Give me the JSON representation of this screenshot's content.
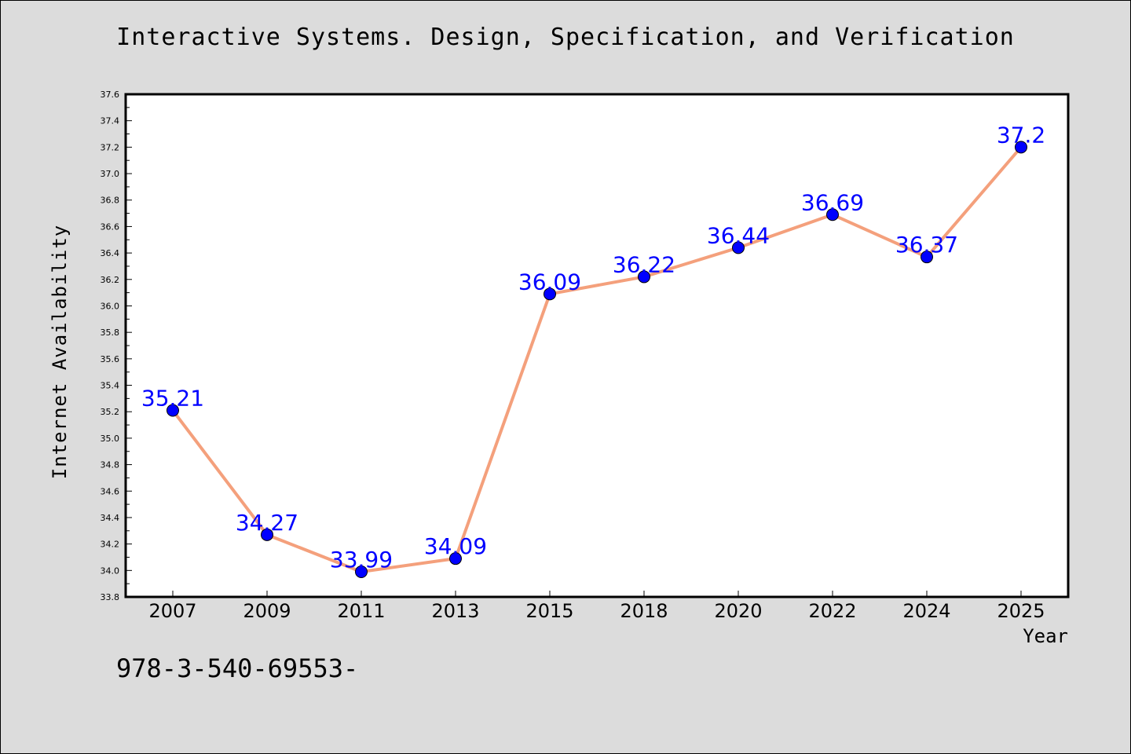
{
  "chart_data": {
    "type": "line",
    "title": "Interactive Systems. Design, Specification, and Verification",
    "xlabel": "Year",
    "ylabel": "Internet Availability",
    "categories": [
      "2007",
      "2009",
      "2011",
      "2013",
      "2015",
      "2018",
      "2020",
      "2022",
      "2024",
      "2025"
    ],
    "series": [
      {
        "values": [
          35.21,
          34.27,
          33.99,
          34.09,
          36.09,
          36.22,
          36.44,
          36.69,
          36.37,
          37.2
        ]
      }
    ],
    "data_labels": [
      "35.21",
      "34.27",
      "33.99",
      "34.09",
      "36.09",
      "36.22",
      "36.44",
      "36.69",
      "36.37",
      "37.2"
    ],
    "ylim": [
      33.8,
      37.6
    ],
    "yticks": [
      "33.8",
      "34.0",
      "34.2",
      "34.4",
      "34.6",
      "34.8",
      "35.0",
      "35.2",
      "35.4",
      "35.6",
      "35.8",
      "36.0",
      "36.2",
      "36.4",
      "36.6",
      "36.8",
      "37.0",
      "37.2",
      "37.4",
      "37.6"
    ],
    "grid": false,
    "legend": false,
    "colors": {
      "line": "#f4a07c",
      "marker": "#0000ff",
      "label": "#0000ff",
      "plot_background": "#ffffff",
      "figure_background": "#dcdcdc"
    }
  },
  "footnote": "978-3-540-69553-"
}
